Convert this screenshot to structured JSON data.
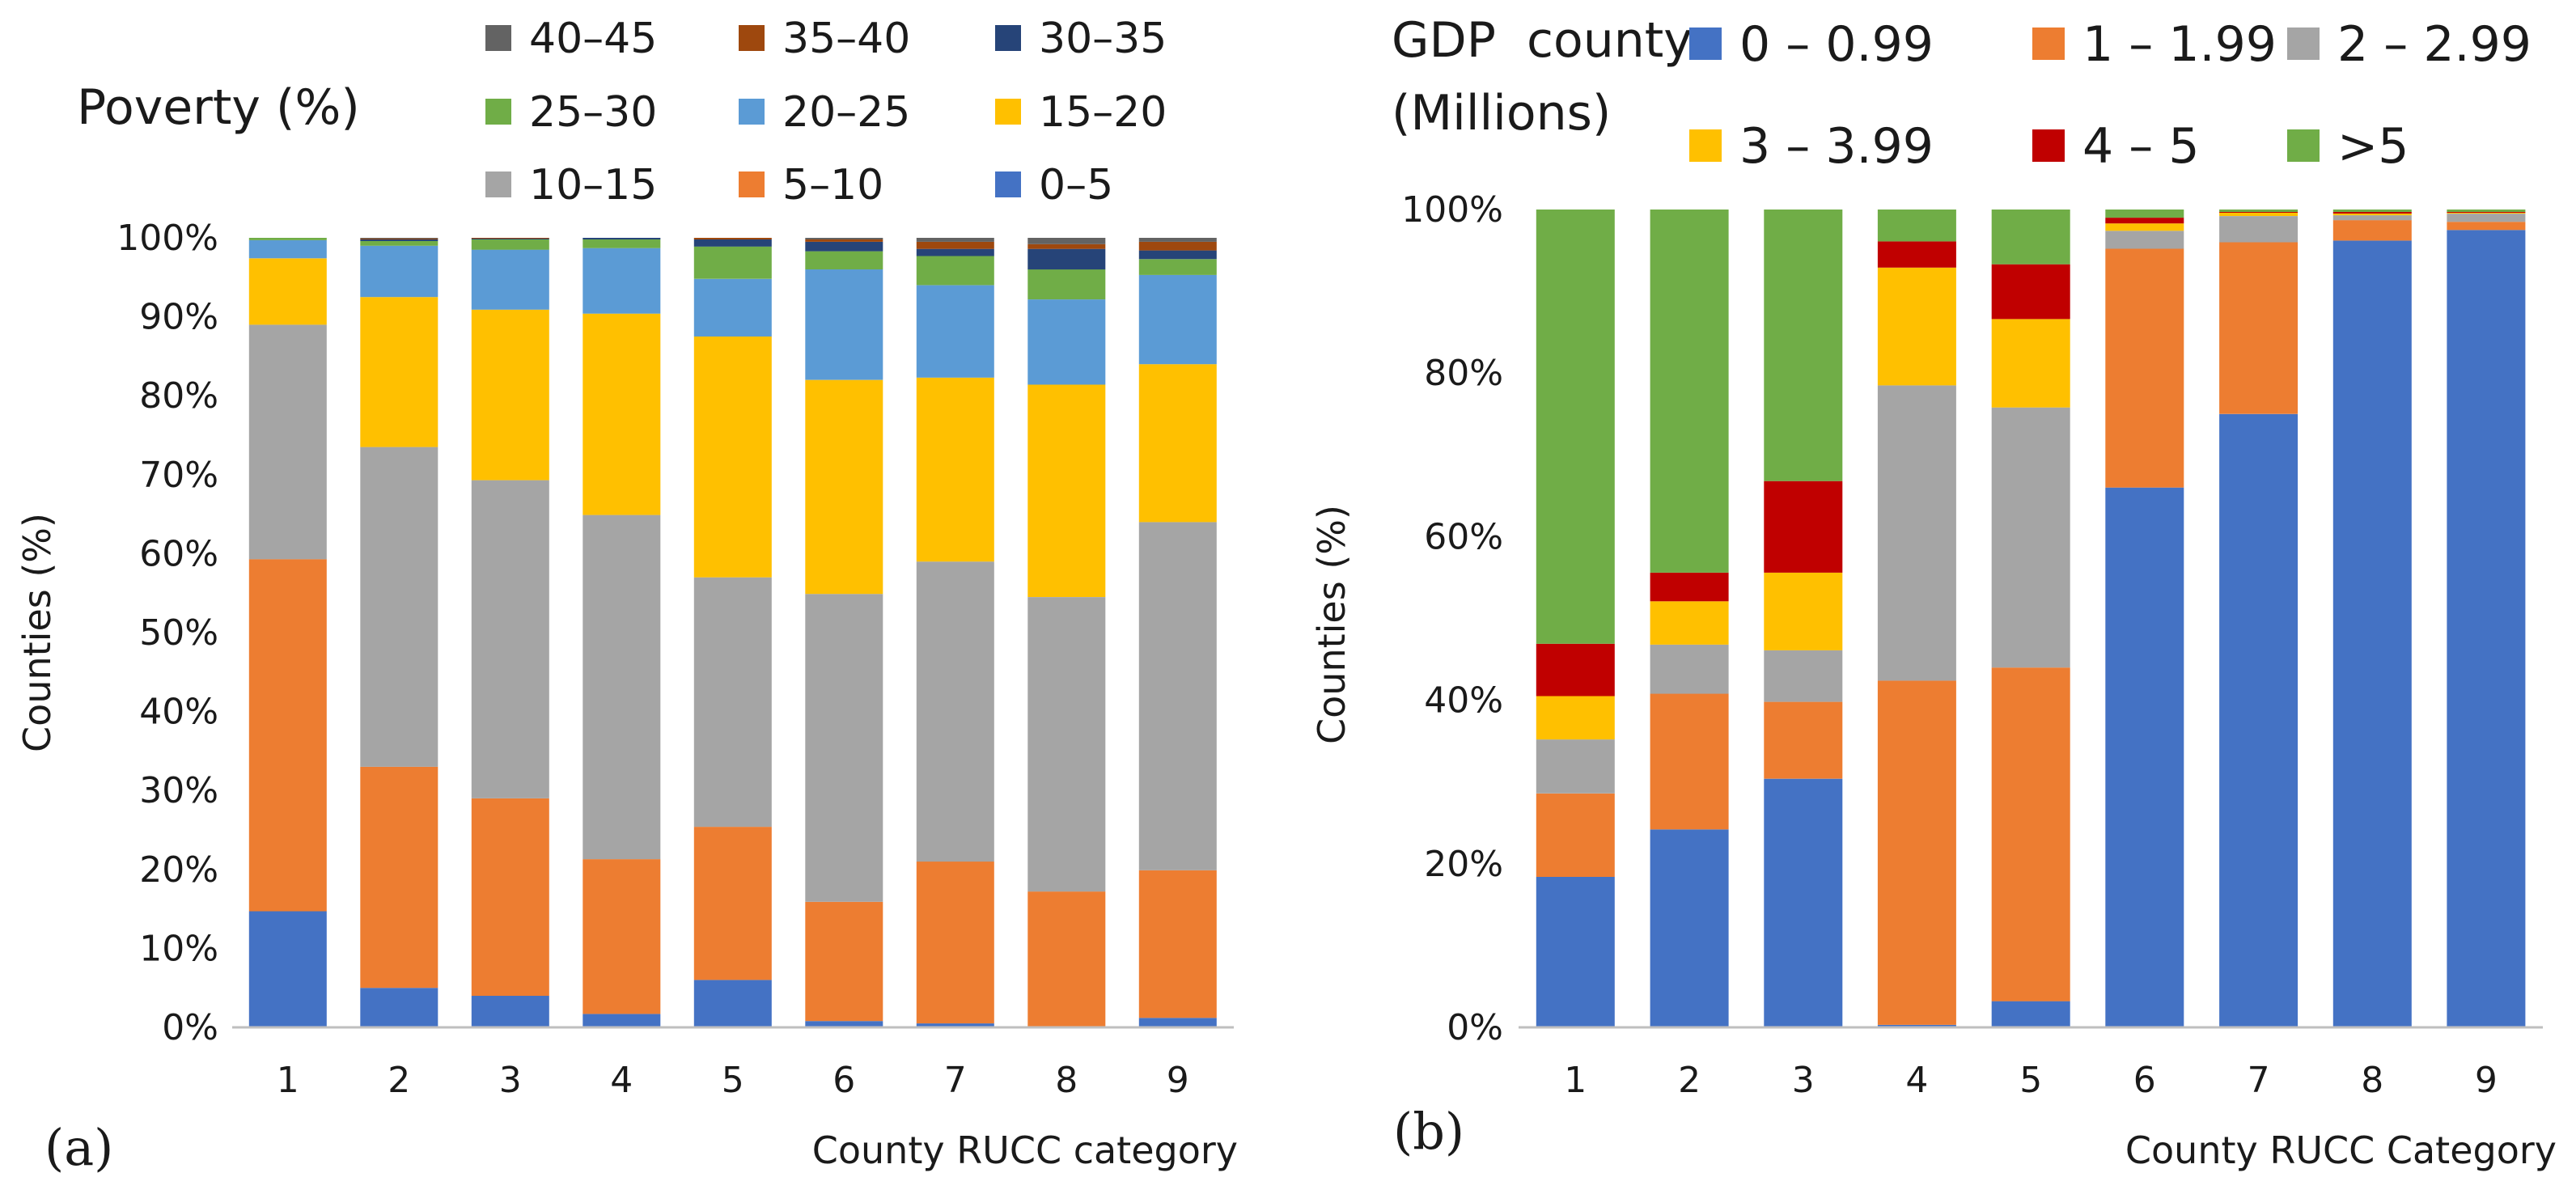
{
  "chart_data": [
    {
      "type": "bar",
      "stacked": "percent",
      "panel_label": "(a)",
      "title": "Poverty (%)",
      "xlabel": "County RUCC category",
      "ylabel": "Counties (%)",
      "ylim": [
        0,
        100
      ],
      "yticks": [
        "0%",
        "10%",
        "20%",
        "30%",
        "40%",
        "50%",
        "60%",
        "70%",
        "80%",
        "90%",
        "100%"
      ],
      "grid": false,
      "legend_position": "top",
      "categories": [
        "1",
        "2",
        "3",
        "4",
        "5",
        "6",
        "7",
        "8",
        "9"
      ],
      "series": [
        {
          "name": "0–5",
          "color": "#4472C4",
          "values": [
            14.7,
            5.0,
            4.0,
            1.7,
            6.0,
            0.8,
            0.5,
            0.0,
            1.2
          ]
        },
        {
          "name": "5–10",
          "color": "#ED7D31",
          "values": [
            44.6,
            28.0,
            25.0,
            19.6,
            19.4,
            15.1,
            20.5,
            17.2,
            18.7
          ]
        },
        {
          "name": "10–15",
          "color": "#A5A5A5",
          "values": [
            29.7,
            40.5,
            40.3,
            43.6,
            31.6,
            39.0,
            38.0,
            37.3,
            44.1
          ]
        },
        {
          "name": "15–20",
          "color": "#FFC000",
          "values": [
            8.4,
            19.0,
            21.6,
            25.5,
            30.5,
            27.1,
            23.3,
            26.9,
            20.0
          ]
        },
        {
          "name": "20–25",
          "color": "#5B9BD5",
          "values": [
            2.3,
            6.5,
            7.6,
            8.3,
            7.3,
            14.0,
            11.7,
            10.8,
            11.3
          ]
        },
        {
          "name": "25–30",
          "color": "#70AD47",
          "values": [
            0.3,
            0.6,
            1.3,
            1.1,
            4.1,
            2.3,
            3.7,
            3.8,
            2.0
          ]
        },
        {
          "name": "30–35",
          "color": "#264478",
          "values": [
            0.0,
            0.2,
            0.1,
            0.2,
            0.9,
            1.2,
            0.9,
            2.6,
            1.1
          ]
        },
        {
          "name": "35–40",
          "color": "#9E480E",
          "values": [
            0.0,
            0.1,
            0.1,
            0.0,
            0.2,
            0.3,
            0.9,
            0.6,
            1.1
          ]
        },
        {
          "name": "40–45",
          "color": "#636363",
          "values": [
            0.0,
            0.1,
            0.0,
            0.0,
            0.0,
            0.2,
            0.5,
            0.8,
            0.5
          ]
        }
      ]
    },
    {
      "type": "bar",
      "stacked": "percent",
      "panel_label": "(b)",
      "title": "GDP  county (Millions)",
      "title_lines": [
        "GDP  county",
        "(Millions)"
      ],
      "xlabel": "County RUCC Category",
      "ylabel": "Counties (%)",
      "ylim": [
        0,
        100
      ],
      "yticks": [
        "0%",
        "20%",
        "40%",
        "60%",
        "80%",
        "100%"
      ],
      "grid": false,
      "legend_position": "top",
      "categories": [
        "1",
        "2",
        "3",
        "4",
        "5",
        "6",
        "7",
        "8",
        "9"
      ],
      "series": [
        {
          "name": "0 – 0.99",
          "color": "#4472C4",
          "values": [
            18.4,
            24.2,
            30.4,
            0.3,
            3.2,
            66.0,
            75.0,
            96.2,
            97.5
          ]
        },
        {
          "name": "1 – 1.99",
          "color": "#ED7D31",
          "values": [
            10.2,
            16.6,
            9.4,
            42.1,
            40.8,
            29.2,
            21.0,
            2.5,
            1.0
          ]
        },
        {
          "name": "2 – 2.99",
          "color": "#A5A5A5",
          "values": [
            6.6,
            6.0,
            6.3,
            36.1,
            31.8,
            2.2,
            3.2,
            0.6,
            1.0
          ]
        },
        {
          "name": "3 – 3.99",
          "color": "#FFC000",
          "values": [
            5.3,
            5.3,
            9.5,
            14.4,
            10.8,
            0.9,
            0.4,
            0.2,
            0.1
          ]
        },
        {
          "name": "4 – 5",
          "color": "#C00000",
          "values": [
            6.4,
            3.5,
            11.2,
            3.2,
            6.7,
            0.7,
            0.1,
            0.2,
            0.1
          ]
        },
        {
          "name": ">5",
          "color": "#70AD47",
          "values": [
            53.1,
            44.4,
            33.2,
            3.9,
            6.7,
            1.0,
            0.3,
            0.3,
            0.3
          ]
        }
      ]
    }
  ]
}
